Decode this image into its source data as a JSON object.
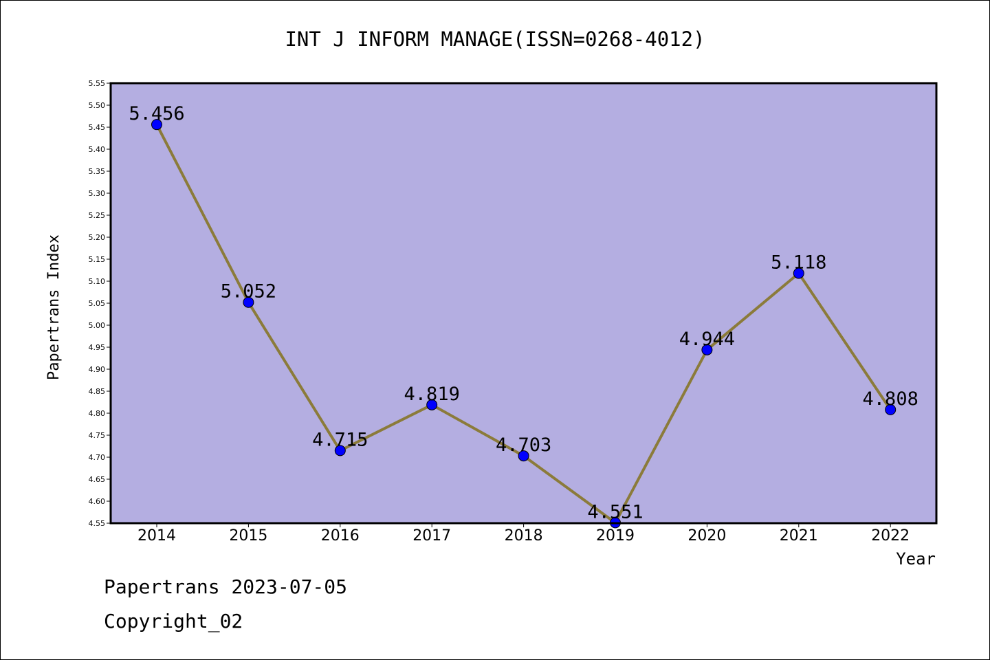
{
  "chart_data": {
    "type": "line",
    "title": "INT J INFORM MANAGE(ISSN=0268-4012)",
    "xlabel": "Year",
    "ylabel": "Papertrans Index",
    "categories": [
      "2014",
      "2015",
      "2016",
      "2017",
      "2018",
      "2019",
      "2020",
      "2021",
      "2022"
    ],
    "series": [
      {
        "values": [
          5.456,
          5.052,
          4.715,
          4.819,
          4.703,
          4.551,
          4.944,
          5.118,
          4.808
        ],
        "data_labels": [
          "5.456",
          "5.052",
          "4.715",
          "4.819",
          "4.703",
          "4.551",
          "4.944",
          "5.118",
          "4.808"
        ]
      }
    ],
    "ylim": [
      4.55,
      5.55
    ],
    "yticks": [
      "4.55",
      "4.60",
      "4.65",
      "4.70",
      "4.75",
      "4.80",
      "4.85",
      "4.90",
      "4.95",
      "5.00",
      "5.05",
      "5.10",
      "5.15",
      "5.20",
      "5.25",
      "5.30",
      "5.35",
      "5.40",
      "5.45",
      "5.50",
      "5.55"
    ],
    "grid": false,
    "colors": {
      "plot_background": "#b4aee1",
      "line": "#8b7b3a",
      "marker": "#0000ff"
    }
  },
  "footer": {
    "date_text": "Papertrans 2023-07-05",
    "copyright_text": "Copyright_02"
  }
}
